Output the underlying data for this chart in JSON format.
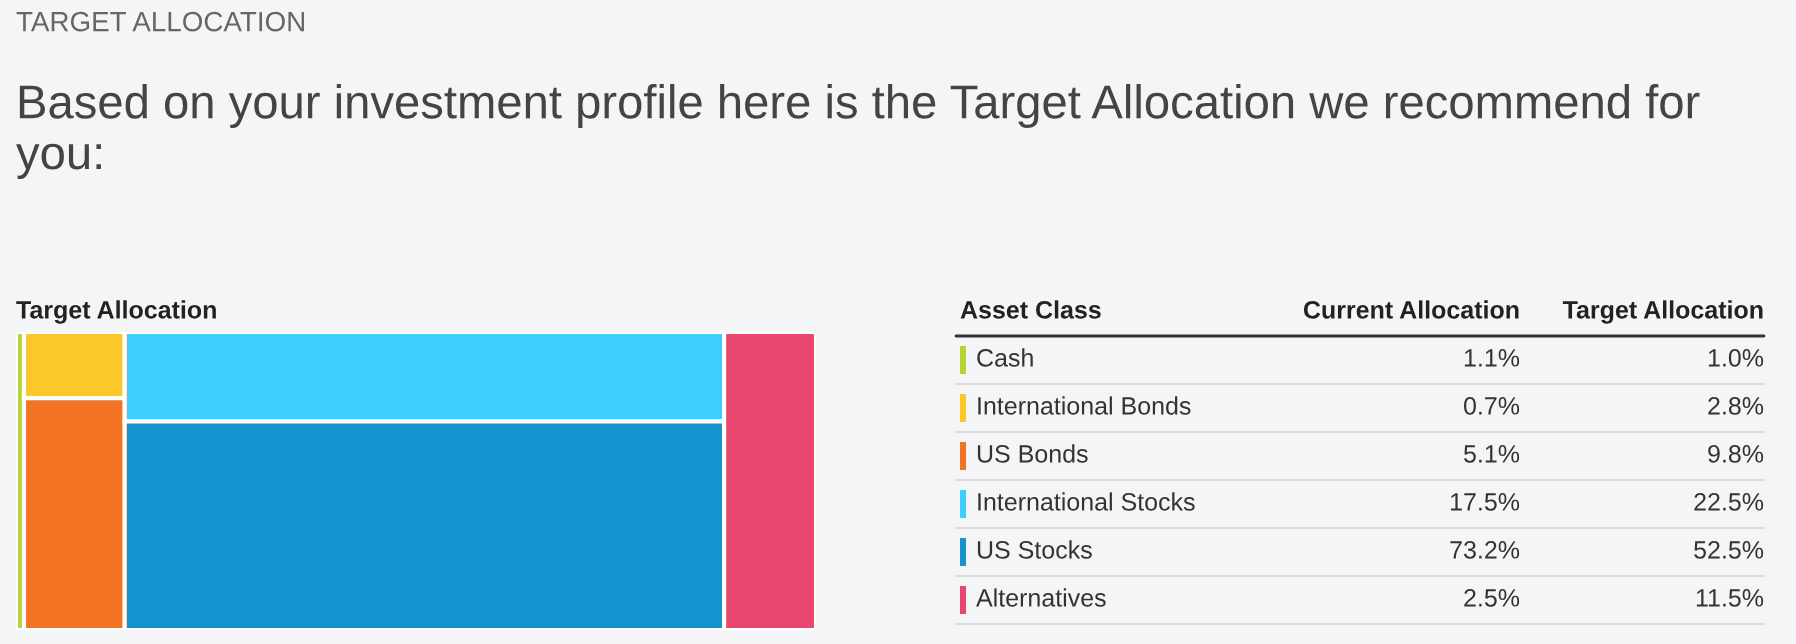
{
  "chart_data": {
    "type": "other",
    "title": "Based on your investment profile here is the Target Allocation we recommend for you:",
    "annotations": [
      "TARGET ALLOCATION",
      "Target Allocation"
    ],
    "legend_title": "Asset Class",
    "categories": [
      "Cash",
      "International Bonds",
      "US Bonds",
      "International Stocks",
      "US Stocks",
      "Alternatives"
    ],
    "colors": [
      "#b5d334",
      "#fcc72a",
      "#f37325",
      "#3ecdfc",
      "#1493cf",
      "#e8466e"
    ],
    "series": [
      {
        "name": "Current Allocation",
        "values": [
          1.1,
          0.7,
          5.1,
          17.5,
          73.2,
          2.5
        ],
        "value_labels": [
          "1.1%",
          "0.7%",
          "5.1%",
          "17.5%",
          "73.2%",
          "2.5%"
        ]
      },
      {
        "name": "Target Allocation",
        "values": [
          1.0,
          2.8,
          9.8,
          22.5,
          52.5,
          11.5
        ],
        "value_labels": [
          "1.0%",
          "2.8%",
          "9.8%",
          "22.5%",
          "52.5%",
          "11.5%"
        ]
      }
    ]
  }
}
